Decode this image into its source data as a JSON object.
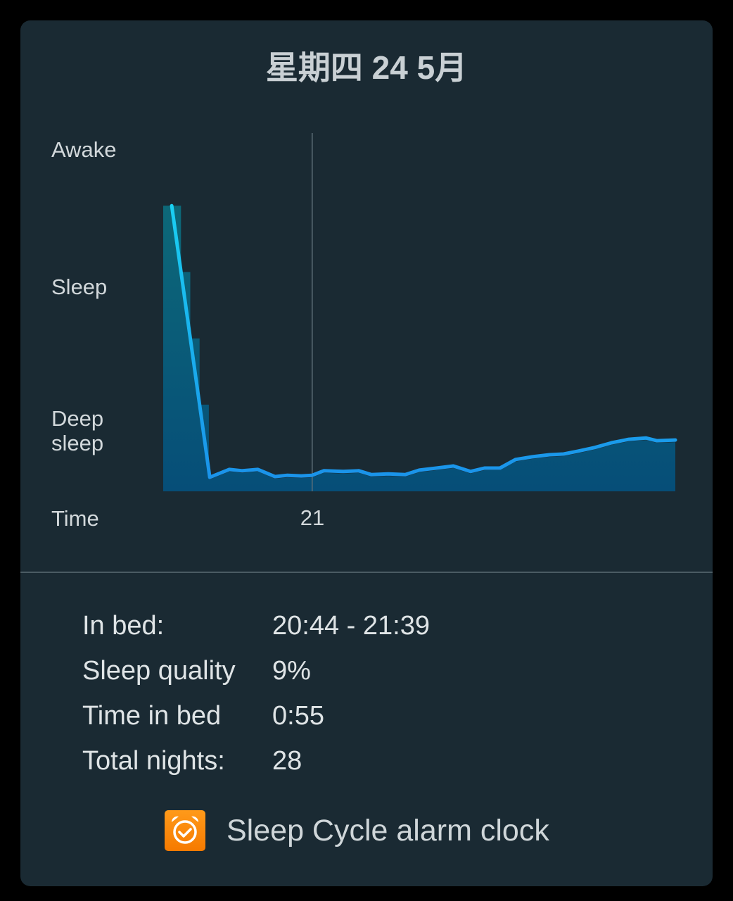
{
  "header": {
    "title": "星期四 24 5月"
  },
  "chart_data": {
    "type": "area",
    "y_labels": [
      "Awake",
      "Sleep",
      "Deep sleep"
    ],
    "x_axis_label": "Time",
    "x_ticks": [
      {
        "time": "21:00",
        "label": "21"
      }
    ],
    "x_range": [
      "20:44",
      "21:39"
    ],
    "y_range": [
      0,
      1
    ],
    "colors": {
      "line_top": "#1ad0f2",
      "line_bottom": "#1a90ea",
      "fill_top": "#0d6878",
      "fill_bottom": "#064e78",
      "grid": "#5d6e78"
    },
    "series": [
      {
        "points": [
          [
            "20:44:55",
            0.835
          ],
          [
            "20:49:00",
            0.041
          ],
          [
            "20:51:05",
            0.064
          ],
          [
            "20:52:30",
            0.06
          ],
          [
            "20:54:10",
            0.064
          ],
          [
            "20:56:00",
            0.043
          ],
          [
            "20:57:20",
            0.047
          ],
          [
            "20:58:50",
            0.045
          ],
          [
            "21:00:00",
            0.047
          ],
          [
            "21:01:15",
            0.06
          ],
          [
            "21:03:20",
            0.058
          ],
          [
            "21:05:00",
            0.06
          ],
          [
            "21:06:20",
            0.049
          ],
          [
            "21:08:10",
            0.051
          ],
          [
            "21:10:00",
            0.049
          ],
          [
            "21:11:30",
            0.062
          ],
          [
            "21:13:20",
            0.068
          ],
          [
            "21:15:10",
            0.074
          ],
          [
            "21:17:00",
            0.058
          ],
          [
            "21:18:30",
            0.068
          ],
          [
            "21:20:10",
            0.068
          ],
          [
            "21:21:50",
            0.093
          ],
          [
            "21:23:40",
            0.101
          ],
          [
            "21:25:30",
            0.107
          ],
          [
            "21:27:00",
            0.109
          ],
          [
            "21:28:30",
            0.117
          ],
          [
            "21:30:20",
            0.128
          ],
          [
            "21:32:10",
            0.142
          ],
          [
            "21:34:00",
            0.152
          ],
          [
            "21:35:50",
            0.156
          ],
          [
            "21:37:00",
            0.148
          ],
          [
            "21:39:00",
            0.15
          ]
        ]
      }
    ]
  },
  "stats": [
    {
      "label": "In bed:",
      "value": "20:44 - 21:39"
    },
    {
      "label": "Sleep quality",
      "value": "9%"
    },
    {
      "label": "Time in bed",
      "value": "0:55"
    },
    {
      "label": "Total nights:",
      "value": "28"
    }
  ],
  "footer": {
    "brand": "Sleep Cycle alarm clock",
    "icon": "alarm-clock-check-icon",
    "icon_color": "#f98a0c"
  }
}
